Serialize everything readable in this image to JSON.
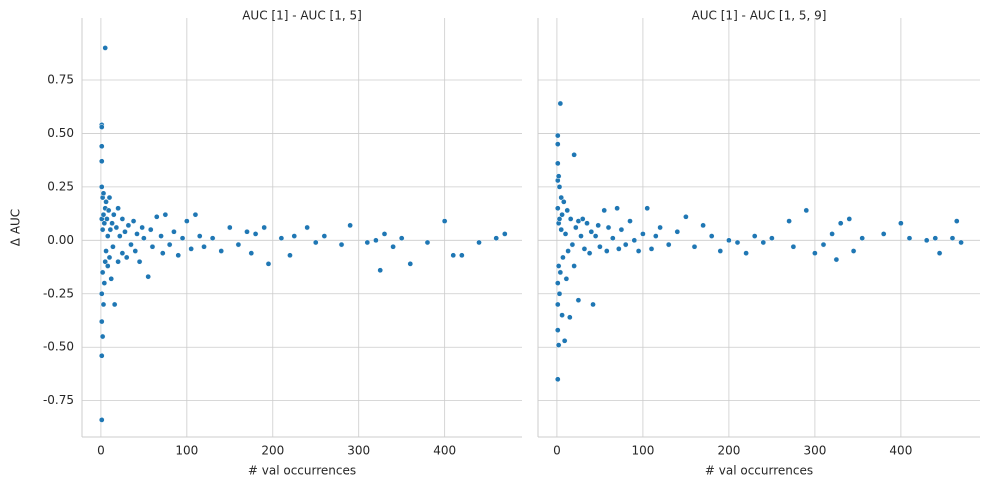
{
  "chart_data": [
    {
      "type": "scatter",
      "title": "AUC [1] - AUC [1, 5]",
      "x_label": "# val occurrences",
      "y_label": "Δ AUC",
      "color": "#1f77b4",
      "grid": true,
      "xlim": [
        -22,
        490
      ],
      "ylim": [
        -0.92,
        1.04
      ],
      "xticks": [
        0,
        100,
        200,
        300,
        400
      ],
      "yticks": [
        -0.75,
        {
          "value": -0.5,
          "label": "-0.50"
        },
        -0.25,
        {
          "value": 0,
          "label": "0.00"
        },
        0.25,
        {
          "value": 0.5,
          "label": "0.50"
        },
        0.75
      ],
      "x": [
        1,
        1,
        1,
        1,
        1,
        1,
        1,
        1,
        1,
        1,
        2,
        2,
        2,
        2,
        3,
        3,
        3,
        4,
        4,
        5,
        5,
        5,
        6,
        6,
        7,
        8,
        8,
        9,
        10,
        10,
        11,
        12,
        13,
        14,
        15,
        16,
        18,
        20,
        20,
        22,
        25,
        25,
        28,
        30,
        32,
        35,
        38,
        40,
        42,
        45,
        48,
        50,
        55,
        58,
        60,
        65,
        70,
        72,
        75,
        80,
        85,
        90,
        95,
        100,
        105,
        110,
        115,
        120,
        130,
        140,
        150,
        160,
        170,
        175,
        180,
        190,
        195,
        210,
        220,
        225,
        240,
        250,
        260,
        280,
        290,
        310,
        320,
        325,
        330,
        340,
        350,
        360,
        380,
        400,
        410,
        420,
        440,
        460,
        470
      ],
      "values": [
        0.54,
        0.53,
        -0.84,
        -0.54,
        0.44,
        0.37,
        -0.38,
        0.25,
        -0.25,
        0.1,
        -0.45,
        0.2,
        -0.15,
        0.05,
        0.22,
        -0.3,
        0.12,
        -0.2,
        0.08,
        0.9,
        -0.1,
        0.15,
        -0.05,
        0.18,
        0.1,
        -0.12,
        0.02,
        0.14,
        -0.08,
        0.2,
        0.05,
        -0.18,
        0.08,
        -0.03,
        0.12,
        -0.3,
        0.06,
        -0.1,
        0.15,
        0.02,
        -0.06,
        0.1,
        0.04,
        -0.08,
        0.07,
        -0.02,
        0.09,
        -0.05,
        0.03,
        -0.1,
        0.06,
        0.01,
        -0.17,
        0.05,
        -0.03,
        0.11,
        0.02,
        -0.06,
        0.12,
        -0.02,
        0.04,
        -0.07,
        0.01,
        0.09,
        -0.04,
        0.12,
        0.02,
        -0.03,
        0.01,
        -0.05,
        0.06,
        -0.02,
        0.04,
        -0.06,
        0.03,
        0.06,
        -0.11,
        0.01,
        -0.07,
        0.02,
        0.06,
        -0.01,
        0.02,
        -0.02,
        0.07,
        -0.01,
        0,
        -0.14,
        0.03,
        -0.03,
        0.01,
        -0.11,
        -0.01,
        0.09,
        -0.07,
        -0.07,
        -0.01,
        0.01,
        0.03
      ]
    },
    {
      "type": "scatter",
      "title": "AUC [1] - AUC [1, 5, 9]",
      "x_label": "# val occurrences",
      "color": "#1f77b4",
      "grid": true,
      "xlim": [
        -22,
        492
      ],
      "ylim": [
        -0.92,
        1.04
      ],
      "xticks": [
        0,
        100,
        200,
        300,
        400
      ],
      "yticks": [
        -0.75,
        -0.5,
        -0.25,
        0,
        0.25,
        0.5,
        0.75
      ],
      "x": [
        1,
        1,
        1,
        1,
        1,
        1,
        1,
        1,
        1,
        2,
        2,
        2,
        2,
        3,
        3,
        3,
        4,
        4,
        5,
        5,
        6,
        6,
        7,
        8,
        9,
        10,
        11,
        12,
        13,
        15,
        16,
        18,
        20,
        20,
        22,
        25,
        25,
        28,
        30,
        32,
        35,
        38,
        40,
        42,
        45,
        48,
        50,
        55,
        58,
        60,
        65,
        70,
        72,
        75,
        80,
        85,
        90,
        95,
        100,
        105,
        110,
        115,
        120,
        130,
        140,
        150,
        160,
        170,
        180,
        190,
        200,
        210,
        220,
        230,
        240,
        250,
        270,
        275,
        290,
        300,
        310,
        320,
        325,
        330,
        340,
        345,
        355,
        380,
        400,
        410,
        430,
        440,
        445,
        460,
        465,
        470
      ],
      "values": [
        0.49,
        0.45,
        -0.65,
        -0.42,
        0.36,
        0.28,
        -0.3,
        0.15,
        -0.2,
        -0.49,
        0.3,
        -0.12,
        0.08,
        0.25,
        -0.25,
        0.1,
        0.64,
        -0.15,
        0.05,
        0.2,
        -0.35,
        0.12,
        -0.08,
        0.18,
        -0.47,
        0.03,
        -0.18,
        0.14,
        -0.05,
        -0.36,
        0.1,
        -0.02,
        0.4,
        -0.12,
        0.06,
        -0.28,
        0.09,
        0.02,
        0.1,
        -0.04,
        0.08,
        -0.06,
        0.04,
        -0.3,
        0.02,
        0.07,
        -0.03,
        0.14,
        -0.05,
        0.06,
        0.01,
        0.15,
        -0.04,
        0.05,
        -0.02,
        0.09,
        0,
        -0.05,
        0.03,
        0.15,
        -0.04,
        0.02,
        0.06,
        -0.02,
        0.04,
        0.11,
        -0.03,
        0.07,
        0.02,
        -0.05,
        0,
        -0.01,
        -0.06,
        0.02,
        -0.01,
        0.01,
        0.09,
        -0.03,
        0.14,
        -0.06,
        -0.02,
        0.03,
        -0.09,
        0.08,
        0.1,
        -0.05,
        0.01,
        0.03,
        0.08,
        0.01,
        0,
        0.01,
        -0.06,
        0.01,
        0.09,
        -0.01
      ]
    }
  ]
}
